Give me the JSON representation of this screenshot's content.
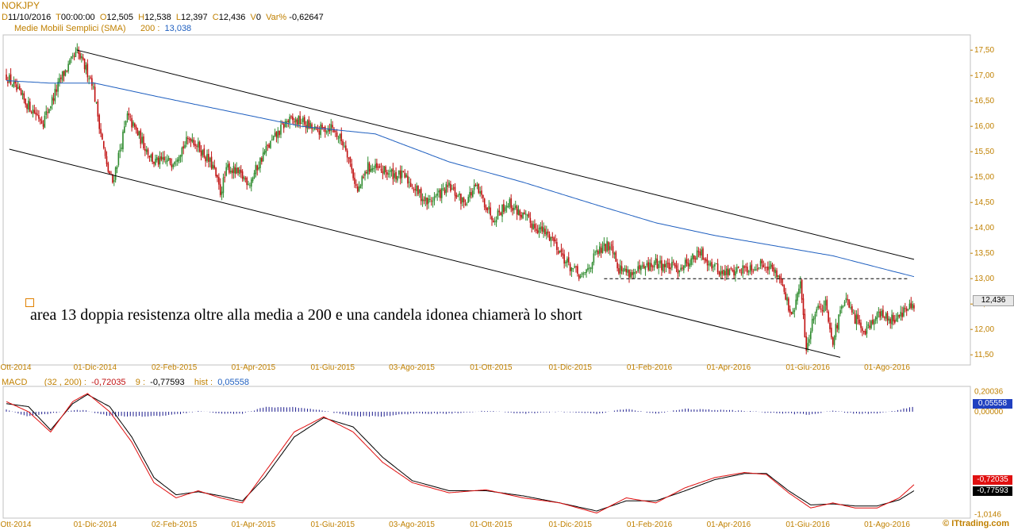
{
  "header": {
    "symbol": "NOKJPY",
    "date_label": "D",
    "date": "11/10/2016",
    "time_label": "T",
    "time": "00:00:00",
    "open_label": "O",
    "open": "12,505",
    "high_label": "H",
    "high": "12,538",
    "low_label": "L",
    "low": "12,397",
    "close_label": "C",
    "close": "12,436",
    "volume_label": "V",
    "volume": "0",
    "var_label": "Var%",
    "var": "-0,62647",
    "sma_label": "Medie Mobili Semplici (SMA)",
    "sma_period": "200 :",
    "sma_value": "13,038"
  },
  "macd_header": {
    "label": "MACD",
    "params": "(32 , 200) :",
    "macd_value": "-0,72035",
    "signal_label": "9 :",
    "signal_value": "-0,77593",
    "hist_label": "hist :",
    "hist_value": "0,05558"
  },
  "annotation": {
    "text": "area 13 doppia resistenza oltre alla media a 200 e una candela idonea chiamerà lo short"
  },
  "brand": "© ITtrading.com",
  "colors": {
    "label": "#c08000",
    "candle_up": "#2e8b2e",
    "candle_down": "#c01010",
    "sma": "#2060c0",
    "macd": "#000000",
    "signal": "#e01010",
    "hist": "#1a1a8c",
    "channel": "#000000"
  },
  "chart_data": [
    {
      "type": "candlestick",
      "price_ticks": [
        "17,50",
        "17,00",
        "16,50",
        "16,00",
        "15,50",
        "15,00",
        "14,50",
        "14,00",
        "13,50",
        "13,00",
        "12,50",
        "12,00",
        "11,50"
      ],
      "price_tick_values": [
        17.5,
        17.0,
        16.5,
        16.0,
        15.5,
        15.0,
        14.5,
        14.0,
        13.5,
        13.0,
        12.5,
        12.0,
        11.5
      ],
      "ylim": [
        11.3,
        17.8
      ],
      "x_ticks": [
        "Ott-2014",
        "01-Dic-2014",
        "02-Feb-2015",
        "01-Apr-2015",
        "01-Giu-2015",
        "03-Ago-2015",
        "01-Ott-2015",
        "01-Dic-2015",
        "01-Feb-2016",
        "01-Apr-2016",
        "01-Giu-2016",
        "01-Ago-2016"
      ],
      "last_price_label": "12,436",
      "price_path": [
        [
          0,
          17.0
        ],
        [
          12,
          16.5
        ],
        [
          25,
          16.1
        ],
        [
          38,
          17.0
        ],
        [
          48,
          17.45
        ],
        [
          58,
          16.9
        ],
        [
          68,
          15.2
        ],
        [
          72,
          14.9
        ],
        [
          82,
          16.2
        ],
        [
          100,
          15.3
        ],
        [
          112,
          15.3
        ],
        [
          125,
          15.8
        ],
        [
          140,
          15.2
        ],
        [
          145,
          14.7
        ],
        [
          150,
          15.2
        ],
        [
          165,
          14.9
        ],
        [
          175,
          15.5
        ],
        [
          190,
          16.1
        ],
        [
          200,
          16.1
        ],
        [
          210,
          15.9
        ],
        [
          220,
          16.0
        ],
        [
          230,
          15.6
        ],
        [
          238,
          14.7
        ],
        [
          245,
          15.2
        ],
        [
          270,
          15.0
        ],
        [
          285,
          14.5
        ],
        [
          300,
          14.8
        ],
        [
          310,
          14.5
        ],
        [
          318,
          14.8
        ],
        [
          330,
          14.2
        ],
        [
          340,
          14.5
        ],
        [
          355,
          14.1
        ],
        [
          370,
          13.8
        ],
        [
          380,
          13.3
        ],
        [
          390,
          13.0
        ],
        [
          400,
          13.5
        ],
        [
          410,
          13.7
        ],
        [
          415,
          13.2
        ],
        [
          425,
          13.1
        ],
        [
          440,
          13.3
        ],
        [
          455,
          13.2
        ],
        [
          470,
          13.5
        ],
        [
          485,
          13.1
        ],
        [
          500,
          13.2
        ],
        [
          515,
          13.3
        ],
        [
          525,
          13.0
        ],
        [
          532,
          12.2
        ],
        [
          538,
          12.9
        ],
        [
          542,
          11.6
        ],
        [
          548,
          12.4
        ],
        [
          555,
          12.5
        ],
        [
          560,
          11.8
        ],
        [
          568,
          12.6
        ],
        [
          575,
          12.2
        ],
        [
          582,
          12.0
        ],
        [
          590,
          12.3
        ],
        [
          600,
          12.2
        ],
        [
          610,
          12.4
        ],
        [
          615,
          12.44
        ]
      ],
      "sma_path": [
        [
          0,
          16.9
        ],
        [
          30,
          16.85
        ],
        [
          60,
          16.85
        ],
        [
          100,
          16.6
        ],
        [
          150,
          16.3
        ],
        [
          200,
          16.0
        ],
        [
          250,
          15.85
        ],
        [
          300,
          15.3
        ],
        [
          350,
          14.9
        ],
        [
          400,
          14.45
        ],
        [
          440,
          14.1
        ],
        [
          480,
          13.85
        ],
        [
          520,
          13.65
        ],
        [
          560,
          13.45
        ],
        [
          600,
          13.15
        ],
        [
          615,
          13.04
        ]
      ],
      "upper_channel": [
        [
          48,
          17.5
        ],
        [
          615,
          13.38
        ]
      ],
      "lower_channel": [
        [
          2,
          15.55
        ],
        [
          565,
          11.45
        ]
      ],
      "resistance_level": 13.0
    },
    {
      "type": "macd",
      "params": "(32 , 200)",
      "ylim": [
        -1.05,
        0.25
      ],
      "ticks": [
        "0,20036",
        "0,00000",
        "-1,0146"
      ],
      "tick_values": [
        0.20036,
        0.0,
        -1.0146
      ],
      "macd_label": "-0,72035",
      "signal_label": "-0,77593",
      "hist_label": "0,05558",
      "macd_path": [
        [
          0,
          0.1
        ],
        [
          15,
          0.0
        ],
        [
          30,
          -0.2
        ],
        [
          45,
          0.1
        ],
        [
          55,
          0.18
        ],
        [
          70,
          0.0
        ],
        [
          85,
          -0.3
        ],
        [
          100,
          -0.7
        ],
        [
          115,
          -0.85
        ],
        [
          130,
          -0.78
        ],
        [
          145,
          -0.85
        ],
        [
          160,
          -0.9
        ],
        [
          175,
          -0.6
        ],
        [
          195,
          -0.2
        ],
        [
          215,
          -0.05
        ],
        [
          235,
          -0.2
        ],
        [
          255,
          -0.5
        ],
        [
          275,
          -0.7
        ],
        [
          300,
          -0.8
        ],
        [
          325,
          -0.77
        ],
        [
          350,
          -0.85
        ],
        [
          375,
          -0.9
        ],
        [
          400,
          -1.0
        ],
        [
          420,
          -0.85
        ],
        [
          440,
          -0.9
        ],
        [
          460,
          -0.75
        ],
        [
          480,
          -0.65
        ],
        [
          500,
          -0.6
        ],
        [
          515,
          -0.62
        ],
        [
          530,
          -0.8
        ],
        [
          545,
          -0.95
        ],
        [
          560,
          -0.9
        ],
        [
          575,
          -0.95
        ],
        [
          590,
          -0.95
        ],
        [
          605,
          -0.85
        ],
        [
          615,
          -0.72
        ]
      ],
      "signal_path": [
        [
          0,
          0.08
        ],
        [
          15,
          0.05
        ],
        [
          30,
          -0.18
        ],
        [
          45,
          0.08
        ],
        [
          55,
          0.17
        ],
        [
          70,
          0.05
        ],
        [
          85,
          -0.25
        ],
        [
          100,
          -0.65
        ],
        [
          115,
          -0.82
        ],
        [
          130,
          -0.79
        ],
        [
          145,
          -0.83
        ],
        [
          160,
          -0.88
        ],
        [
          175,
          -0.65
        ],
        [
          195,
          -0.25
        ],
        [
          215,
          -0.06
        ],
        [
          235,
          -0.15
        ],
        [
          255,
          -0.45
        ],
        [
          275,
          -0.68
        ],
        [
          300,
          -0.78
        ],
        [
          325,
          -0.78
        ],
        [
          350,
          -0.83
        ],
        [
          375,
          -0.9
        ],
        [
          400,
          -0.98
        ],
        [
          420,
          -0.88
        ],
        [
          440,
          -0.88
        ],
        [
          460,
          -0.78
        ],
        [
          480,
          -0.67
        ],
        [
          500,
          -0.61
        ],
        [
          515,
          -0.61
        ],
        [
          530,
          -0.78
        ],
        [
          545,
          -0.92
        ],
        [
          560,
          -0.91
        ],
        [
          575,
          -0.93
        ],
        [
          590,
          -0.93
        ],
        [
          605,
          -0.87
        ],
        [
          615,
          -0.78
        ]
      ]
    }
  ]
}
